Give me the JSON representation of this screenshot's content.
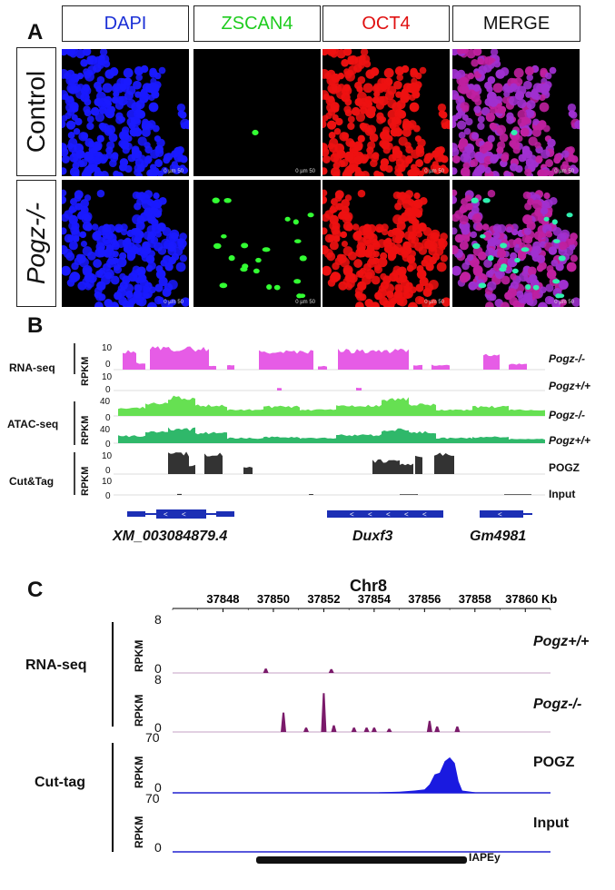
{
  "panel_a": {
    "letter": "A",
    "columns": [
      {
        "label": "DAPI",
        "color": "#1a2fd6"
      },
      {
        "label": "ZSCAN4",
        "color": "#1fcc1f"
      },
      {
        "label": "OCT4",
        "color": "#e01010"
      },
      {
        "label": "MERGE",
        "color": "#111111"
      }
    ],
    "rows": [
      {
        "label": "Control"
      },
      {
        "label": "Pogz-/-"
      }
    ],
    "scale_label": "0  µm  50"
  },
  "panel_b": {
    "letter": "B",
    "groups": [
      {
        "label": "RNA-seq",
        "unit": "RPKM"
      },
      {
        "label": "ATAC-seq",
        "unit": "RPKM"
      },
      {
        "label": "Cut&Tag",
        "unit": "RPKM"
      }
    ],
    "tracks": [
      {
        "name": "Pogz-/-",
        "max": "10",
        "min": "0",
        "color": "#e65ce6"
      },
      {
        "name": "Pogz+/+",
        "max": "10",
        "min": "0",
        "color": "#e65ce6"
      },
      {
        "name": "Pogz-/-",
        "max": "40",
        "min": "0",
        "color": "#66e052"
      },
      {
        "name": "Pogz+/+",
        "max": "40",
        "min": "0",
        "color": "#2fb86a"
      },
      {
        "name": "POGZ",
        "max": "10",
        "min": "0",
        "color": "#333333"
      },
      {
        "name": "Input",
        "max": "10",
        "min": "0",
        "color": "#333333"
      }
    ],
    "genes": [
      "XM_003084879.4",
      "Duxf3",
      "Gm4981"
    ],
    "gene_color": "#1c2fb5"
  },
  "panel_c": {
    "letter": "C",
    "chrom": "Chr8",
    "axis": {
      "ticks": [
        "37848",
        "37850",
        "37852",
        "37854",
        "37856",
        "37858",
        "37860 Kb"
      ],
      "range_kb": [
        37846,
        37861
      ]
    },
    "groups": [
      {
        "label": "RNA-seq"
      },
      {
        "label": "Cut-tag"
      }
    ],
    "tracks": [
      {
        "name": "Pogz+/+",
        "unit": "RPKM",
        "max": "8",
        "min": "0",
        "color": "#7a1a6a"
      },
      {
        "name": "Pogz-/-",
        "unit": "RPKM",
        "max": "8",
        "min": "0",
        "color": "#7a1a6a"
      },
      {
        "name": "POGZ",
        "unit": "RPKM",
        "max": "70",
        "min": "0",
        "color": "#1a1ae0"
      },
      {
        "name": "Input",
        "unit": "RPKM",
        "max": "70",
        "min": "0",
        "color": "#1a1ae0"
      }
    ],
    "element": "IAPEy"
  }
}
